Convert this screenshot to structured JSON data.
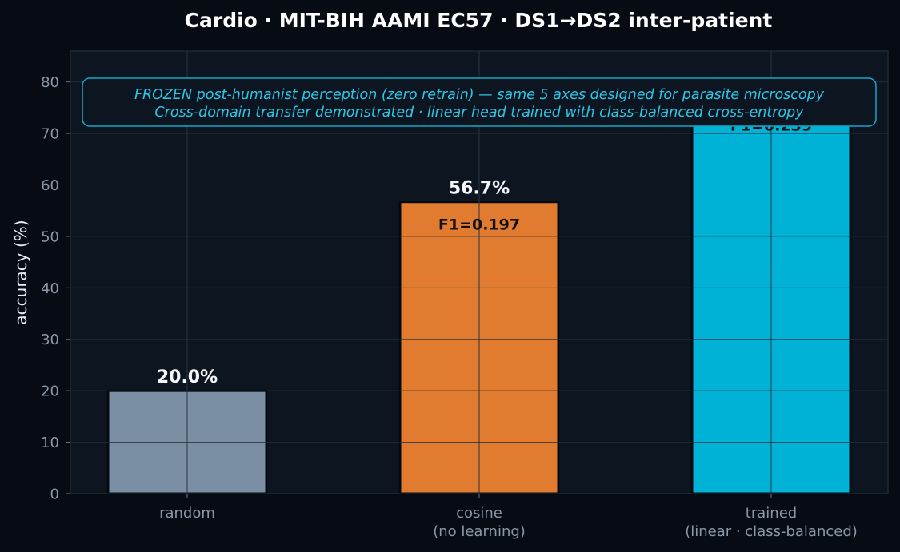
{
  "chart_data": {
    "type": "bar",
    "title": "Cardio · MIT-BIH AAMI EC57 · DS1→DS2 inter-patient",
    "ylabel": "accuracy (%)",
    "xlabel": "",
    "ylim": [
      0,
      86
    ],
    "yticks": [
      0,
      10,
      20,
      30,
      40,
      50,
      60,
      70,
      80
    ],
    "grid": true,
    "categories": [
      {
        "line1": "random",
        "line2": ""
      },
      {
        "line1": "cosine",
        "line2": "(no learning)"
      },
      {
        "line1": "trained",
        "line2": "(linear · class-balanced)"
      }
    ],
    "values": [
      20.0,
      56.7,
      76.0
    ],
    "value_labels": [
      "20.0%",
      "56.7%",
      ""
    ],
    "f1_labels": [
      "",
      "F1=0.197",
      "F1=0.239"
    ],
    "colors": [
      "#7a8fa3",
      "#e07b30",
      "#00b2d6"
    ],
    "annotation": {
      "line1": "FROZEN post-humanist perception (zero retrain) — same 5 axes designed for parasite microscopy",
      "line2": "Cross-domain transfer demonstrated · linear head trained with class-balanced cross-entropy",
      "color": "#2ec6e6"
    }
  }
}
